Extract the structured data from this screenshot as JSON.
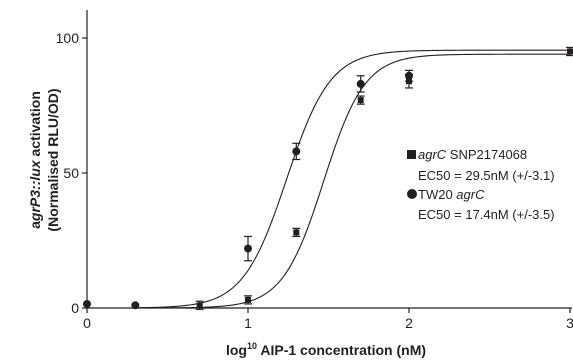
{
  "chart_data": {
    "type": "scatter",
    "xlabel_parts": {
      "pre": "log",
      "sup": "10",
      "post": " AIP-1 concentration (nM)"
    },
    "ylabel_line1_parts": {
      "pre": "a",
      "italic": "grP3::lux",
      "post": " activation"
    },
    "ylabel_line2": "(Normalised RLU/OD)",
    "xlim": [
      0,
      3
    ],
    "ylim": [
      0,
      100
    ],
    "x_ticks": [
      {
        "value": 0,
        "label": "0"
      },
      {
        "value": 1,
        "label": "1"
      },
      {
        "value": 2,
        "label": "2"
      },
      {
        "value": 3,
        "label": "3"
      }
    ],
    "y_ticks": [
      {
        "value": 0,
        "label": "0"
      },
      {
        "value": 50,
        "label": "50"
      },
      {
        "value": 100,
        "label": "100"
      }
    ],
    "grid": false,
    "legend_position": "right",
    "series": [
      {
        "name_italic": "agrC",
        "name_rest": " SNP2174068",
        "ec50_text": "EC50 = 29.5nM (+/-3.1)",
        "marker": "square",
        "color": "#231f20",
        "fit": {
          "top": 94,
          "log_ec50": 1.47,
          "hill": 3.4
        },
        "points": [
          {
            "x": 0.7,
            "y": 1,
            "err": 1.5
          },
          {
            "x": 1.0,
            "y": 3,
            "err": 1.5
          },
          {
            "x": 1.3,
            "y": 28,
            "err": 1.5
          },
          {
            "x": 1.7,
            "y": 77,
            "err": 1.5
          },
          {
            "x": 2.0,
            "y": 84,
            "err": 2.5
          },
          {
            "x": 3.0,
            "y": 95,
            "err": 1.5
          }
        ]
      },
      {
        "name_italic": "agrC",
        "name_pre": "TW20 ",
        "ec50_text": "EC50 = 17.4nM (+/-3.5)",
        "marker": "circle",
        "color": "#231f20",
        "fit": {
          "top": 95.5,
          "log_ec50": 1.24,
          "hill": 3.2
        },
        "points": [
          {
            "x": 0.0,
            "y": 1.5,
            "err": 0
          },
          {
            "x": 0.3,
            "y": 1,
            "err": 0
          },
          {
            "x": 1.0,
            "y": 22,
            "err": 4.5
          },
          {
            "x": 1.3,
            "y": 58,
            "err": 3
          },
          {
            "x": 1.7,
            "y": 83,
            "err": 3
          },
          {
            "x": 2.0,
            "y": 86,
            "err": 2
          }
        ]
      }
    ]
  }
}
